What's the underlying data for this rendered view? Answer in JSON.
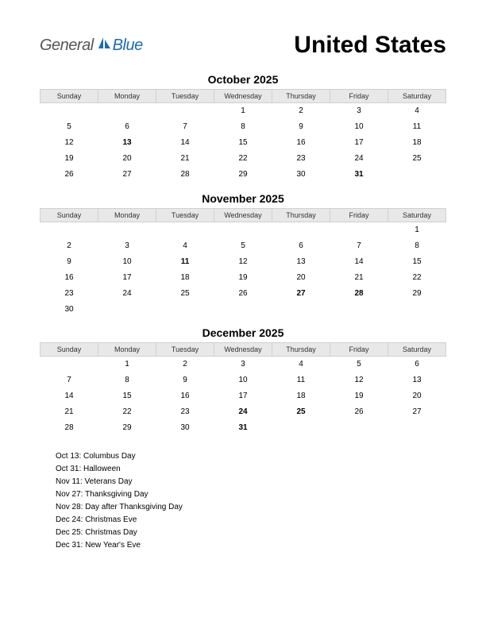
{
  "logo": {
    "text1": "General",
    "text2": "Blue",
    "color1": "#555555",
    "color2": "#1a6bb3",
    "sail_color": "#1a6bb3"
  },
  "title": "United States",
  "day_headers": [
    "Sunday",
    "Monday",
    "Tuesday",
    "Wednesday",
    "Thursday",
    "Friday",
    "Saturday"
  ],
  "holiday_color": "#cc0000",
  "header_bg": "#e8e8e8",
  "header_border": "#d0d0d0",
  "months": [
    {
      "title": "October 2025",
      "weeks": [
        [
          null,
          null,
          null,
          {
            "d": 1
          },
          {
            "d": 2
          },
          {
            "d": 3
          },
          {
            "d": 4
          }
        ],
        [
          {
            "d": 5
          },
          {
            "d": 6
          },
          {
            "d": 7
          },
          {
            "d": 8
          },
          {
            "d": 9
          },
          {
            "d": 10
          },
          {
            "d": 11
          }
        ],
        [
          {
            "d": 12
          },
          {
            "d": 13,
            "h": true
          },
          {
            "d": 14
          },
          {
            "d": 15
          },
          {
            "d": 16
          },
          {
            "d": 17
          },
          {
            "d": 18
          }
        ],
        [
          {
            "d": 19
          },
          {
            "d": 20
          },
          {
            "d": 21
          },
          {
            "d": 22
          },
          {
            "d": 23
          },
          {
            "d": 24
          },
          {
            "d": 25
          }
        ],
        [
          {
            "d": 26
          },
          {
            "d": 27
          },
          {
            "d": 28
          },
          {
            "d": 29
          },
          {
            "d": 30
          },
          {
            "d": 31,
            "h": true
          },
          null
        ]
      ]
    },
    {
      "title": "November 2025",
      "weeks": [
        [
          null,
          null,
          null,
          null,
          null,
          null,
          {
            "d": 1
          }
        ],
        [
          {
            "d": 2
          },
          {
            "d": 3
          },
          {
            "d": 4
          },
          {
            "d": 5
          },
          {
            "d": 6
          },
          {
            "d": 7
          },
          {
            "d": 8
          }
        ],
        [
          {
            "d": 9
          },
          {
            "d": 10
          },
          {
            "d": 11,
            "h": true
          },
          {
            "d": 12
          },
          {
            "d": 13
          },
          {
            "d": 14
          },
          {
            "d": 15
          }
        ],
        [
          {
            "d": 16
          },
          {
            "d": 17
          },
          {
            "d": 18
          },
          {
            "d": 19
          },
          {
            "d": 20
          },
          {
            "d": 21
          },
          {
            "d": 22
          }
        ],
        [
          {
            "d": 23
          },
          {
            "d": 24
          },
          {
            "d": 25
          },
          {
            "d": 26
          },
          {
            "d": 27,
            "h": true
          },
          {
            "d": 28,
            "h": true
          },
          {
            "d": 29
          }
        ],
        [
          {
            "d": 30
          },
          null,
          null,
          null,
          null,
          null,
          null
        ]
      ]
    },
    {
      "title": "December 2025",
      "weeks": [
        [
          null,
          {
            "d": 1
          },
          {
            "d": 2
          },
          {
            "d": 3
          },
          {
            "d": 4
          },
          {
            "d": 5
          },
          {
            "d": 6
          }
        ],
        [
          {
            "d": 7
          },
          {
            "d": 8
          },
          {
            "d": 9
          },
          {
            "d": 10
          },
          {
            "d": 11
          },
          {
            "d": 12
          },
          {
            "d": 13
          }
        ],
        [
          {
            "d": 14
          },
          {
            "d": 15
          },
          {
            "d": 16
          },
          {
            "d": 17
          },
          {
            "d": 18
          },
          {
            "d": 19
          },
          {
            "d": 20
          }
        ],
        [
          {
            "d": 21
          },
          {
            "d": 22
          },
          {
            "d": 23
          },
          {
            "d": 24,
            "h": true
          },
          {
            "d": 25,
            "h": true
          },
          {
            "d": 26
          },
          {
            "d": 27
          }
        ],
        [
          {
            "d": 28
          },
          {
            "d": 29
          },
          {
            "d": 30
          },
          {
            "d": 31,
            "h": true
          },
          null,
          null,
          null
        ]
      ]
    }
  ],
  "holidays": [
    "Oct 13: Columbus Day",
    "Oct 31: Halloween",
    "Nov 11: Veterans Day",
    "Nov 27: Thanksgiving Day",
    "Nov 28: Day after Thanksgiving Day",
    "Dec 24: Christmas Eve",
    "Dec 25: Christmas Day",
    "Dec 31: New Year's Eve"
  ]
}
